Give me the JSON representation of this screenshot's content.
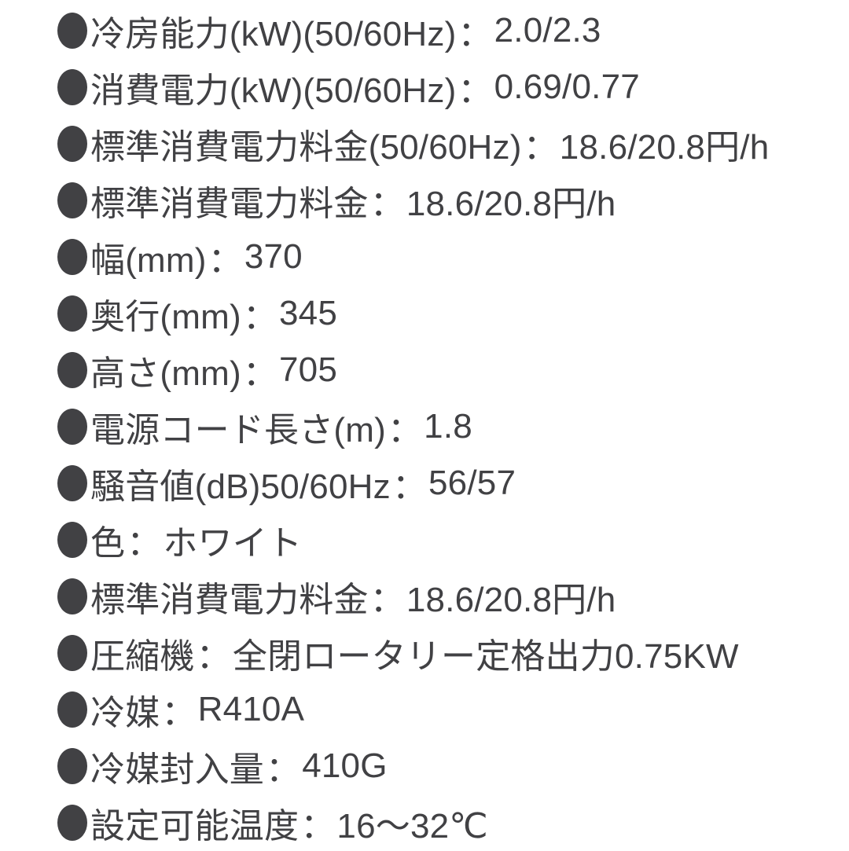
{
  "page": {
    "background": "#ffffff",
    "text_color": "#414144"
  },
  "specs": {
    "bullet": "●",
    "separator": "：",
    "items": [
      {
        "label": "冷房能力(kW)(50/60Hz)",
        "value": "2.0/2.3"
      },
      {
        "label": "消費電力(kW)(50/60Hz)",
        "value": "0.69/0.77"
      },
      {
        "label": "標準消費電力料金(50/60Hz)",
        "value": "18.6/20.8円/h"
      },
      {
        "label": "標準消費電力料金",
        "value": "18.6/20.8円/h"
      },
      {
        "label": "幅(mm)",
        "value": "370"
      },
      {
        "label": "奥行(mm)",
        "value": "345"
      },
      {
        "label": "高さ(mm)",
        "value": "705"
      },
      {
        "label": "電源コード長さ(m)",
        "value": "1.8"
      },
      {
        "label": "騒音値(dB)50/60Hz",
        "value": "56/57"
      },
      {
        "label": "色",
        "value": "ホワイト"
      },
      {
        "label": "標準消費電力料金",
        "value": "18.6/20.8円/h"
      },
      {
        "label": "圧縮機",
        "value": "全閉ロータリー定格出力0.75KW"
      },
      {
        "label": "冷媒",
        "value": "R410A"
      },
      {
        "label": "冷媒封入量",
        "value": "410G"
      },
      {
        "label": "設定可能温度",
        "value": "16〜32℃"
      }
    ]
  }
}
